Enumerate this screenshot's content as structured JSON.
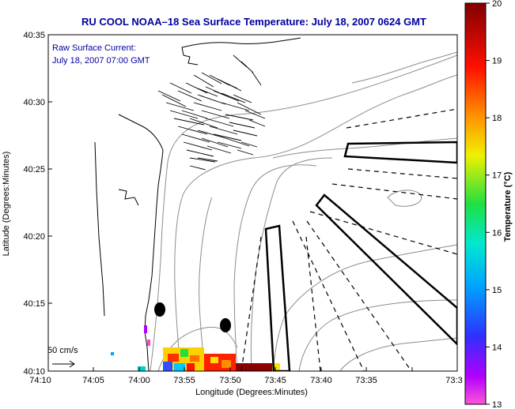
{
  "title": "RU COOL  NOAA–18  Sea Surface Temperature:  July 18, 2007 0624 GMT",
  "annotation": {
    "line1": "Raw Surface Current:",
    "line2": "July 18, 2007 07:00 GMT"
  },
  "scale_label": "50 cm/s",
  "axes": {
    "xlabel": "Longitude (Degrees:Minutes)",
    "ylabel": "Latitude (Degrees:Minutes)",
    "x_ticks": [
      "74:10",
      "74:05",
      "74:00",
      "73:55",
      "73:50",
      "73:45",
      "73:40",
      "73:35",
      "73:3"
    ],
    "y_ticks": [
      "40:35",
      "40:30",
      "40:25",
      "40:20",
      "40:15",
      "40:10"
    ]
  },
  "colorbar": {
    "label": "Temperature (°C)",
    "ticks": [
      "20",
      "19",
      "18",
      "17",
      "16",
      "15",
      "14",
      "13"
    ],
    "range": [
      13,
      20
    ]
  },
  "colors": {
    "title_text": "#0000a0",
    "contour": "#8c8c8c",
    "coast": "#000000"
  }
}
